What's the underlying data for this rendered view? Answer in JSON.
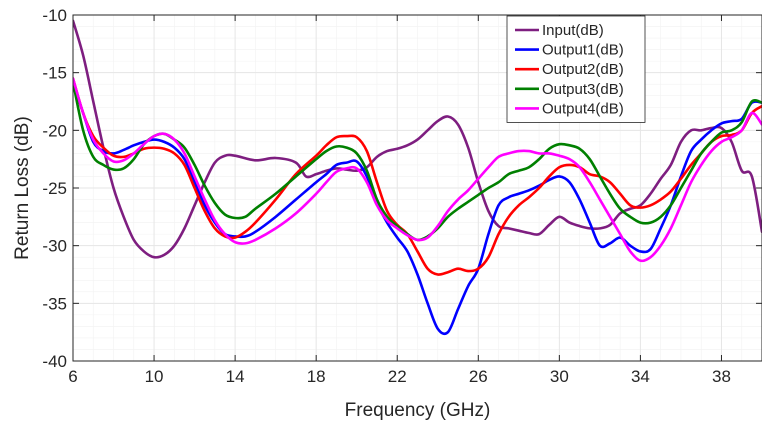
{
  "chart_data": {
    "type": "line",
    "title": "",
    "xlabel": "Frequency (GHz)",
    "ylabel": "Return Loss (dB)",
    "xlim": [
      6,
      40
    ],
    "ylim": [
      -40,
      -10
    ],
    "xticks": [
      6,
      10,
      14,
      18,
      22,
      26,
      30,
      34,
      38
    ],
    "yticks": [
      -10,
      -15,
      -20,
      -25,
      -30,
      -35,
      -40
    ],
    "xtick_labels": [
      "6",
      "10",
      "14",
      "18",
      "22",
      "26",
      "30",
      "34",
      "38"
    ],
    "ytick_labels": [
      "-10",
      "-15",
      "-20",
      "-25",
      "-30",
      "-35",
      "-40"
    ],
    "grid": true,
    "legend_position": "top-right",
    "series": [
      {
        "name": "Input(dB)",
        "color": "#7e1e80",
        "x": [
          6,
          6.5,
          7,
          7.5,
          8,
          8.5,
          9,
          9.5,
          10,
          10.5,
          11,
          11.5,
          12,
          12.5,
          13,
          13.5,
          14,
          15,
          16,
          17,
          17.5,
          18,
          18.5,
          19,
          19.5,
          20,
          20.5,
          21,
          21.5,
          22,
          22.5,
          23,
          23.5,
          24,
          24.5,
          25,
          25.5,
          26,
          26.5,
          27,
          27.5,
          28,
          28.5,
          29,
          29.5,
          30,
          30.5,
          31,
          31.5,
          32,
          32.5,
          33,
          33.5,
          34,
          34.5,
          35,
          35.5,
          36,
          36.5,
          37,
          37.5,
          38,
          38.5,
          39,
          39.5,
          40
        ],
        "y": [
          -10.5,
          -13.5,
          -17.5,
          -21.5,
          -25,
          -27.5,
          -29.5,
          -30.5,
          -31,
          -30.8,
          -30,
          -28.5,
          -26.5,
          -24.5,
          -22.8,
          -22.2,
          -22.2,
          -22.6,
          -22.4,
          -22.8,
          -24,
          -23.8,
          -23.5,
          -23.3,
          -23.4,
          -23.5,
          -23.2,
          -22.3,
          -21.8,
          -21.6,
          -21.3,
          -20.8,
          -20,
          -19.2,
          -18.8,
          -19.5,
          -21.5,
          -24.5,
          -27,
          -28.3,
          -28.5,
          -28.7,
          -28.9,
          -29,
          -28.2,
          -27.5,
          -28,
          -28.3,
          -28.5,
          -28.5,
          -28.2,
          -27.2,
          -26.8,
          -26.5,
          -25.5,
          -24.2,
          -23,
          -21,
          -20,
          -20,
          -19.8,
          -19.8,
          -21,
          -23.5,
          -24,
          -28.8
        ]
      },
      {
        "name": "Output1(dB)",
        "color": "#0000ff",
        "x": [
          6,
          6.5,
          7,
          7.5,
          8,
          8.5,
          9,
          9.5,
          10,
          10.5,
          11,
          11.5,
          12,
          12.5,
          13,
          13.5,
          14,
          14.5,
          15,
          16,
          17,
          18,
          18.5,
          19,
          19.5,
          20,
          20.5,
          21,
          21.5,
          22,
          22.5,
          23,
          23.5,
          24,
          24.5,
          25,
          25.5,
          26,
          26.5,
          27,
          27.5,
          28,
          28.5,
          29,
          29.5,
          30,
          30.5,
          31,
          31.5,
          32,
          32.5,
          33,
          33.5,
          34,
          34.5,
          35,
          35.5,
          36,
          36.5,
          37,
          37.5,
          38,
          38.5,
          39,
          39.5,
          40
        ],
        "y": [
          -15.8,
          -18.5,
          -21,
          -21.8,
          -22,
          -21.7,
          -21.3,
          -21,
          -20.8,
          -21,
          -21.5,
          -22.5,
          -24.5,
          -26.5,
          -28,
          -29,
          -29.2,
          -29.2,
          -28.8,
          -27.5,
          -26,
          -24.5,
          -23.8,
          -23,
          -22.8,
          -22.7,
          -24,
          -26.3,
          -28,
          -29.3,
          -30.5,
          -32.5,
          -35,
          -37.2,
          -37.5,
          -35.5,
          -33.5,
          -32,
          -29,
          -26.5,
          -25.8,
          -25.5,
          -25.2,
          -24.8,
          -24.3,
          -24,
          -24.5,
          -26,
          -28,
          -30,
          -29.8,
          -29.3,
          -30,
          -30.5,
          -30.3,
          -28.5,
          -26.5,
          -24,
          -21.8,
          -20.8,
          -20,
          -19.4,
          -19.2,
          -19,
          -17.6,
          -17.6
        ]
      },
      {
        "name": "Output2(dB)",
        "color": "#ff0000",
        "x": [
          6,
          6.5,
          7,
          7.5,
          8,
          8.5,
          9,
          9.5,
          10,
          10.5,
          11,
          11.5,
          12,
          12.5,
          13,
          13.5,
          14,
          14.5,
          15,
          16,
          17,
          18,
          18.5,
          19,
          19.5,
          20,
          20.5,
          21,
          21.5,
          22,
          22.5,
          23,
          23.5,
          24,
          24.5,
          25,
          25.5,
          26,
          26.5,
          27,
          27.5,
          28,
          28.5,
          29,
          29.5,
          30,
          30.5,
          31,
          31.5,
          32,
          32.5,
          33,
          33.5,
          34,
          34.5,
          35,
          35.5,
          36,
          36.5,
          37,
          37.5,
          38,
          38.5,
          39,
          39.5,
          40
        ],
        "y": [
          -15.5,
          -18.5,
          -20.5,
          -21.5,
          -22.2,
          -22.3,
          -22,
          -21.6,
          -21.5,
          -21.6,
          -22,
          -23,
          -25,
          -27,
          -28.5,
          -29.2,
          -29.3,
          -28.8,
          -28,
          -26,
          -23.8,
          -22.2,
          -21.3,
          -20.6,
          -20.5,
          -20.6,
          -21.8,
          -24.5,
          -27,
          -28.2,
          -29,
          -30.5,
          -32,
          -32.5,
          -32.3,
          -32,
          -32.2,
          -32,
          -31,
          -29,
          -27.5,
          -26.5,
          -25.8,
          -25,
          -24,
          -23.2,
          -23,
          -23.2,
          -23.8,
          -24,
          -24.5,
          -25.5,
          -26.5,
          -26.7,
          -26.5,
          -26,
          -25.3,
          -24.2,
          -23,
          -22,
          -21,
          -20.5,
          -20.4,
          -20,
          -18.5,
          -17.9
        ]
      },
      {
        "name": "Output3(dB)",
        "color": "#008000",
        "x": [
          6,
          6.5,
          7,
          7.5,
          8,
          8.5,
          9,
          9.5,
          10,
          10.5,
          11,
          11.5,
          12,
          12.5,
          13,
          13.5,
          14,
          14.5,
          15,
          16,
          17,
          18,
          18.5,
          19,
          19.5,
          20,
          20.5,
          21,
          21.5,
          22,
          22.5,
          23,
          23.5,
          24,
          24.5,
          25,
          25.5,
          26,
          26.5,
          27,
          27.5,
          28,
          28.5,
          29,
          29.5,
          30,
          30.5,
          31,
          31.5,
          32,
          32.5,
          33,
          33.5,
          34,
          34.5,
          35,
          35.5,
          36,
          36.5,
          37,
          37.5,
          38,
          38.5,
          39,
          39.5,
          40
        ],
        "y": [
          -15.8,
          -20,
          -22.3,
          -23,
          -23.4,
          -23.3,
          -22.5,
          -21.2,
          -20.5,
          -20.3,
          -20.8,
          -21.5,
          -23,
          -24.8,
          -26.3,
          -27.3,
          -27.6,
          -27.5,
          -26.8,
          -25.5,
          -24,
          -22.5,
          -21.8,
          -21.4,
          -21.5,
          -22,
          -23.5,
          -26,
          -27.5,
          -28.3,
          -29,
          -29.5,
          -29.2,
          -28.5,
          -27.5,
          -26.8,
          -26.2,
          -25.6,
          -25,
          -24.5,
          -23.8,
          -23.5,
          -23.2,
          -22.5,
          -21.6,
          -21.2,
          -21.3,
          -21.6,
          -22.5,
          -24,
          -25.5,
          -26.8,
          -27.5,
          -28,
          -28,
          -27.5,
          -26.5,
          -25,
          -23.5,
          -22,
          -21,
          -20.2,
          -20,
          -19.3,
          -17.5,
          -17.6
        ]
      },
      {
        "name": "Output4(dB)",
        "color": "#ff00ff",
        "x": [
          6,
          6.5,
          7,
          7.5,
          8,
          8.5,
          9,
          9.5,
          10,
          10.5,
          11,
          11.5,
          12,
          12.5,
          13,
          13.5,
          14,
          14.5,
          15,
          16,
          17,
          18,
          18.5,
          19,
          19.5,
          20,
          20.5,
          21,
          21.5,
          22,
          22.5,
          23,
          23.5,
          24,
          24.5,
          25,
          25.5,
          26,
          26.5,
          27,
          27.5,
          28,
          28.5,
          29,
          29.5,
          30,
          30.5,
          31,
          31.5,
          32,
          32.5,
          33,
          33.5,
          34,
          34.5,
          35,
          35.5,
          36,
          36.5,
          37,
          37.5,
          38,
          38.5,
          39,
          39.5,
          40
        ],
        "y": [
          -15.5,
          -18.5,
          -20.8,
          -22,
          -22.7,
          -22.6,
          -22,
          -21.2,
          -20.5,
          -20.3,
          -20.8,
          -22,
          -24,
          -26,
          -27.8,
          -29,
          -29.7,
          -29.8,
          -29.5,
          -28.5,
          -27.2,
          -25.5,
          -24.5,
          -23.6,
          -23.3,
          -23.3,
          -24.5,
          -26.5,
          -27.8,
          -28.5,
          -29.1,
          -29.5,
          -29.3,
          -28.3,
          -27,
          -26,
          -25.2,
          -24.2,
          -23.2,
          -22.3,
          -22,
          -21.8,
          -21.8,
          -22,
          -22,
          -22.2,
          -22.5,
          -23.2,
          -24.5,
          -26,
          -27.5,
          -29,
          -30.5,
          -31.3,
          -31,
          -30,
          -28.5,
          -26.5,
          -24.5,
          -23,
          -21.8,
          -21,
          -20.6,
          -20,
          -18.5,
          -19.5
        ]
      }
    ]
  }
}
